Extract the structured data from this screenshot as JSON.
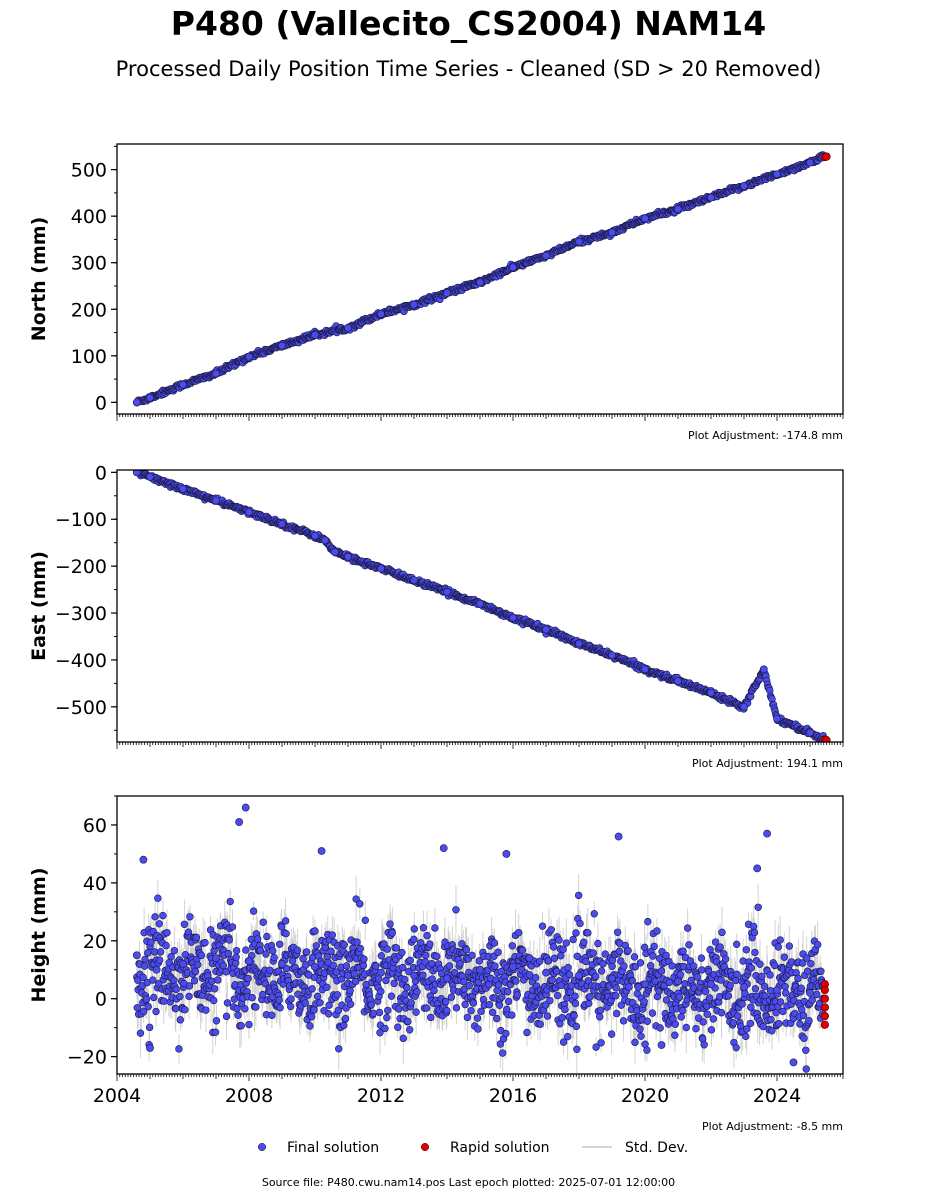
{
  "title": "P480 (Vallecito_CS2004) NAM14",
  "subtitle": "Processed Daily Position Time Series - Cleaned (SD > 20 Removed)",
  "footer": "Source file: P480.cwu.nam14.pos  Last epoch plotted: 2025-07-01 12:00:00",
  "colors": {
    "final": "#4b4bf0",
    "rapid": "#e00000",
    "stddev": "#c8c8c8"
  },
  "legend": {
    "placement": "bottom-center",
    "items": [
      {
        "label": "Final solution",
        "color": "#4b4bf0"
      },
      {
        "label": "Rapid solution",
        "color": "#e00000"
      },
      {
        "label": "Std. Dev.",
        "color": "#c8c8c8"
      }
    ]
  },
  "chart_data": [
    {
      "type": "scatter",
      "ylabel": "North (mm)",
      "adjustment_label": "Plot Adjustment: -174.8 mm",
      "xlim": [
        2004.0,
        2026.0
      ],
      "ylim": [
        -25,
        555
      ],
      "yticks": [
        0,
        100,
        200,
        300,
        400,
        500
      ],
      "ytick_labels": [
        "0",
        "100",
        "200",
        "300",
        "400",
        "500"
      ],
      "xticks": [
        2004,
        2008,
        2012,
        2016,
        2020,
        2024
      ],
      "show_xtick_labels": false,
      "grid": false,
      "final": {
        "x": [
          2004.6,
          2005.0,
          2006.0,
          2007.0,
          2008.0,
          2009.0,
          2010.0,
          2011.0,
          2012.0,
          2013.0,
          2014.0,
          2015.0,
          2016.0,
          2017.0,
          2018.0,
          2019.0,
          2020.0,
          2021.0,
          2022.0,
          2023.0,
          2024.0,
          2025.0,
          2025.4
        ],
        "y": [
          0,
          10,
          38,
          62,
          98,
          122,
          145,
          160,
          190,
          210,
          235,
          258,
          290,
          315,
          345,
          365,
          395,
          415,
          440,
          465,
          490,
          515,
          528
        ]
      },
      "rapid": {
        "x": [
          2025.45,
          2025.5
        ],
        "y": [
          527,
          528
        ]
      }
    },
    {
      "type": "scatter",
      "ylabel": "East (mm)",
      "adjustment_label": "Plot Adjustment: 194.1 mm",
      "xlim": [
        2004.0,
        2026.0
      ],
      "ylim": [
        -575,
        5
      ],
      "yticks": [
        -500,
        -400,
        -300,
        -200,
        -100,
        0
      ],
      "ytick_labels": [
        "−500",
        "−400",
        "−300",
        "−200",
        "−100",
        "0"
      ],
      "xticks": [
        2004,
        2008,
        2012,
        2016,
        2020,
        2024
      ],
      "show_xtick_labels": false,
      "grid": false,
      "final": {
        "x": [
          2004.6,
          2005.0,
          2006.0,
          2007.0,
          2008.0,
          2009.0,
          2010.0,
          2010.3,
          2010.6,
          2011.0,
          2012.0,
          2013.0,
          2014.0,
          2015.0,
          2016.0,
          2017.0,
          2018.0,
          2019.0,
          2020.0,
          2021.0,
          2022.0,
          2023.0,
          2023.6,
          2024.0,
          2025.0,
          2025.4
        ],
        "y": [
          0,
          -10,
          -35,
          -60,
          -85,
          -110,
          -135,
          -145,
          -170,
          -180,
          -205,
          -230,
          -255,
          -280,
          -310,
          -335,
          -365,
          -390,
          -420,
          -445,
          -470,
          -500,
          -420,
          -525,
          -555,
          -570
        ]
      },
      "rapid": {
        "x": [
          2025.45,
          2025.5
        ],
        "y": [
          -570,
          -571
        ]
      }
    },
    {
      "type": "scatter",
      "ylabel": "Height (mm)",
      "adjustment_label": "Plot Adjustment: -8.5 mm",
      "xlim": [
        2004.0,
        2026.0
      ],
      "ylim": [
        -26,
        70
      ],
      "yticks": [
        -20,
        0,
        20,
        40,
        60
      ],
      "ytick_labels": [
        "−20",
        "0",
        "20",
        "40",
        "60"
      ],
      "xticks": [
        2004,
        2008,
        2012,
        2016,
        2020,
        2024
      ],
      "xtick_labels": [
        "2004",
        "2008",
        "2012",
        "2016",
        "2020",
        "2024"
      ],
      "show_xtick_labels": true,
      "grid": false,
      "final": {
        "x": [
          2004.6,
          2004.8,
          2005.0,
          2005.2,
          2006.0,
          2007.0,
          2007.7,
          2007.9,
          2008.0,
          2009.0,
          2010.0,
          2010.2,
          2011.0,
          2012.0,
          2013.0,
          2013.9,
          2014.0,
          2015.0,
          2015.8,
          2016.0,
          2016.5,
          2017.0,
          2018.0,
          2019.0,
          2019.2,
          2019.8,
          2020.0,
          2020.5,
          2021.0,
          2022.0,
          2023.0,
          2023.4,
          2023.7,
          2024.0,
          2024.5,
          2025.0,
          2025.4
        ],
        "y": [
          15,
          48,
          -17,
          10,
          12,
          14,
          61,
          66,
          13,
          12,
          11,
          51,
          8,
          9,
          8,
          52,
          7,
          10,
          50,
          11,
          14,
          9,
          8,
          7,
          56,
          4,
          5,
          -16,
          6,
          5,
          4,
          45,
          57,
          3,
          -22,
          2,
          0
        ]
      },
      "rapid": {
        "x": [
          2025.45,
          2025.45,
          2025.45,
          2025.45,
          2025.45,
          2025.45
        ],
        "y": [
          5,
          3,
          0,
          -3,
          -6,
          -9
        ]
      }
    }
  ]
}
